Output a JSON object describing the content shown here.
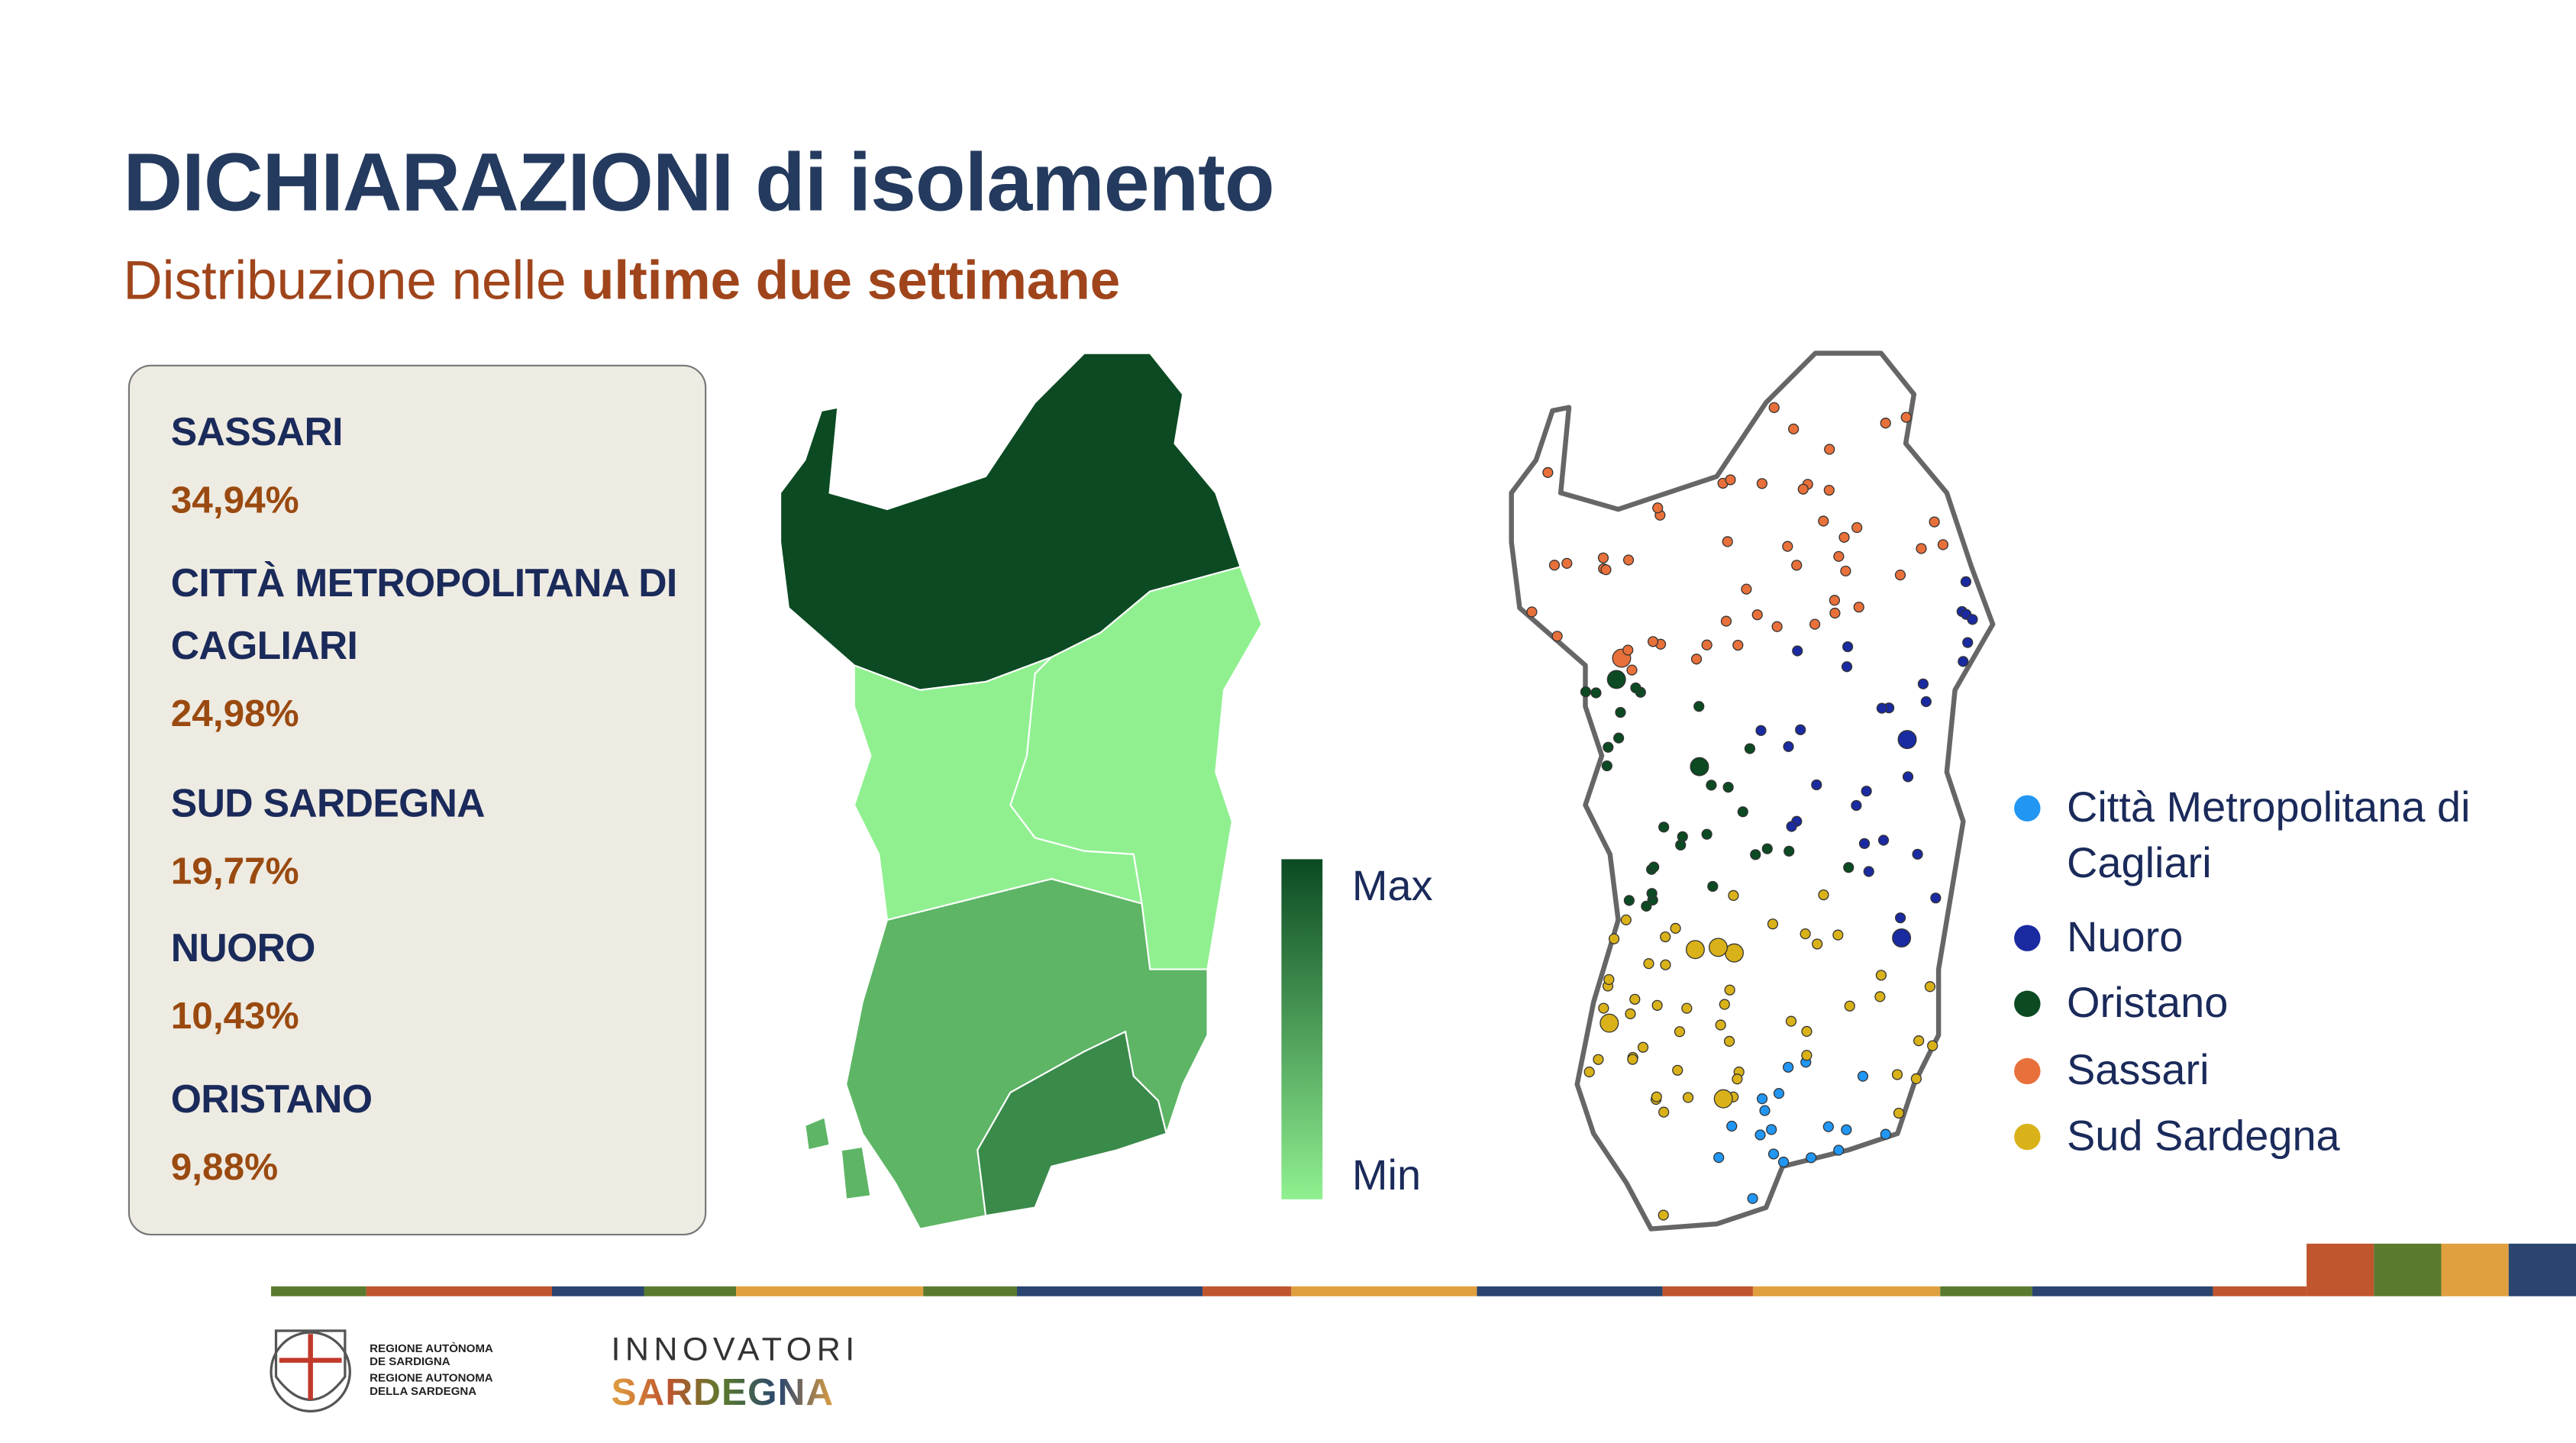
{
  "header": {
    "title": "DICHIARAZIONI di isolamento",
    "subtitle": {
      "text": "Distribuzione nelle",
      "emphasis": "ultime due settimane"
    }
  },
  "summary": [
    {
      "name": "SASSARI",
      "share": "34,94%"
    },
    {
      "name": "CITTÀ METROPOLITANA DI CAGLIARI",
      "share": "24,98%"
    },
    {
      "name": "SUD SARDEGNA",
      "share": "19,77%"
    },
    {
      "name": "NUORO",
      "share": "10,43%"
    },
    {
      "name": "ORISTANO",
      "share": "9,88%"
    }
  ],
  "choropleth": {
    "legend": {
      "max": "Max",
      "min": "Min"
    }
  },
  "dot_map": {
    "legend": [
      {
        "name": "Città Metropolitana di Cagliari",
        "color": "#2196f3"
      },
      {
        "name": "Nuoro",
        "color": "#1a2aa0"
      },
      {
        "name": "Oristano",
        "color": "#0b4a22"
      },
      {
        "name": "Sassari",
        "color": "#e8703a"
      },
      {
        "name": "Sud Sardegna",
        "color": "#d9b21a"
      }
    ]
  },
  "footer": {
    "region": [
      "REGIONE AUTÒNOMA",
      "DE SARDIGNA",
      "REGIONE AUTONOMA",
      "DELLA SARDEGNA"
    ],
    "brand": {
      "line1": "INNOVATORI",
      "line2": "SARDEGNA"
    }
  }
}
